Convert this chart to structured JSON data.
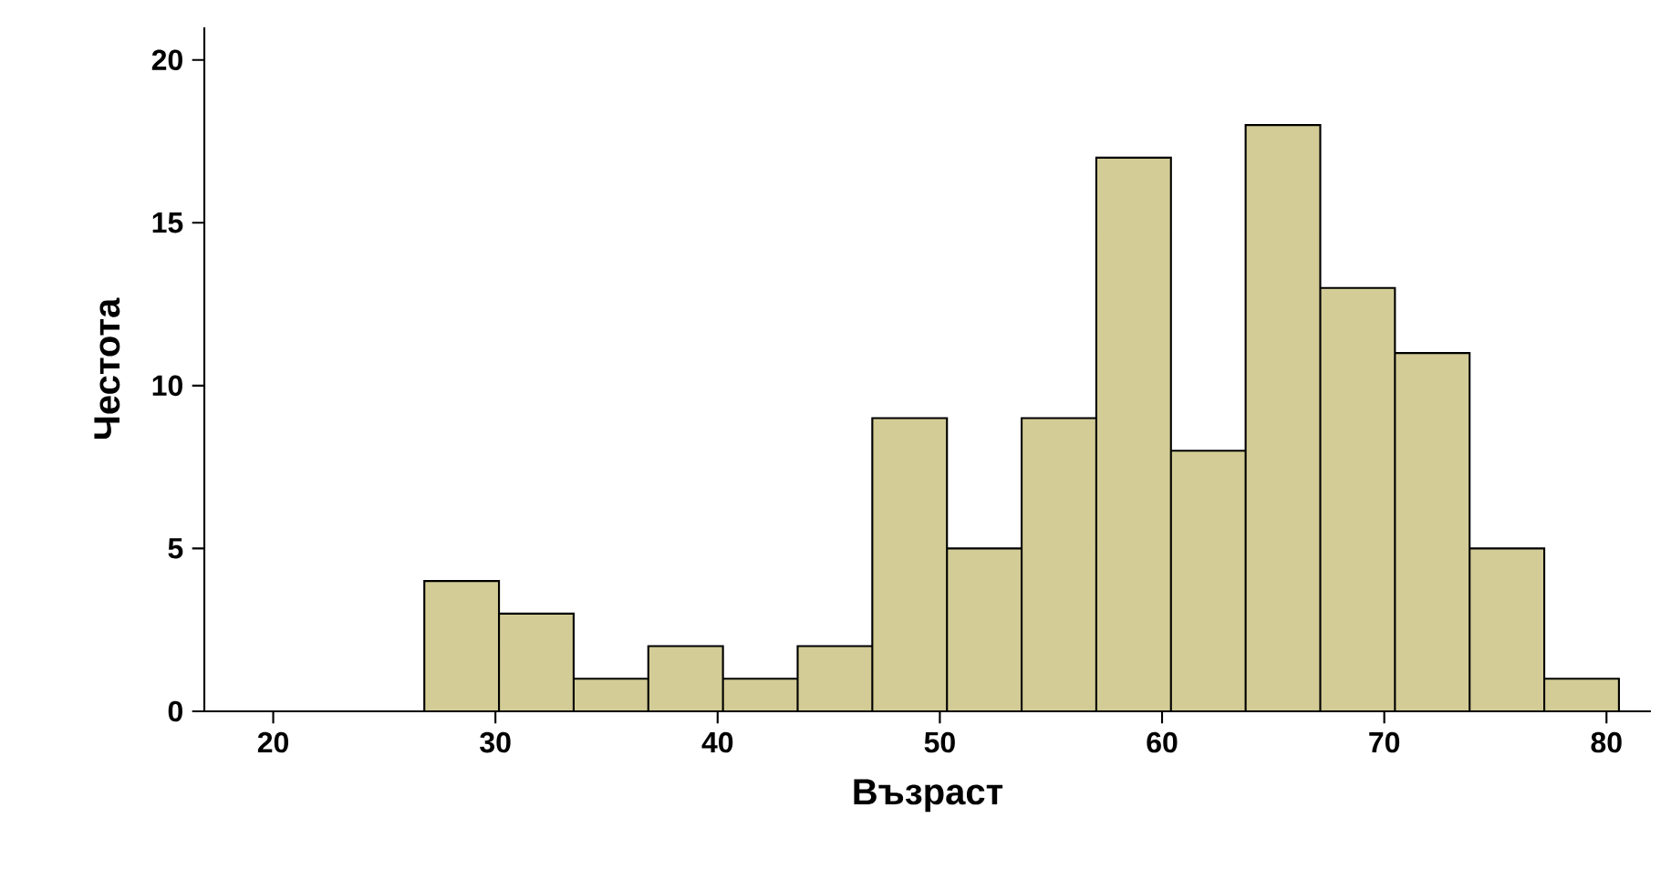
{
  "chart_data": {
    "type": "histogram",
    "xlabel": "Възраст",
    "ylabel": "Честота",
    "color": "#d3cc96",
    "bins": [
      26.8,
      30.16,
      33.52,
      36.88,
      40.24,
      43.6,
      46.96,
      50.32,
      53.68,
      57.04,
      60.4,
      63.76,
      67.12,
      70.48,
      73.84,
      77.2,
      80.56
    ],
    "values": [
      4,
      3,
      1,
      2,
      1,
      2,
      9,
      5,
      9,
      17,
      8,
      18,
      13,
      11,
      5,
      1
    ],
    "xlim": [
      16.9,
      82
    ],
    "xticks": [
      20,
      30,
      40,
      50,
      60,
      70,
      80
    ],
    "ylim": [
      0,
      21
    ],
    "yticks": [
      0,
      5,
      10,
      15,
      20
    ],
    "grid": false
  }
}
